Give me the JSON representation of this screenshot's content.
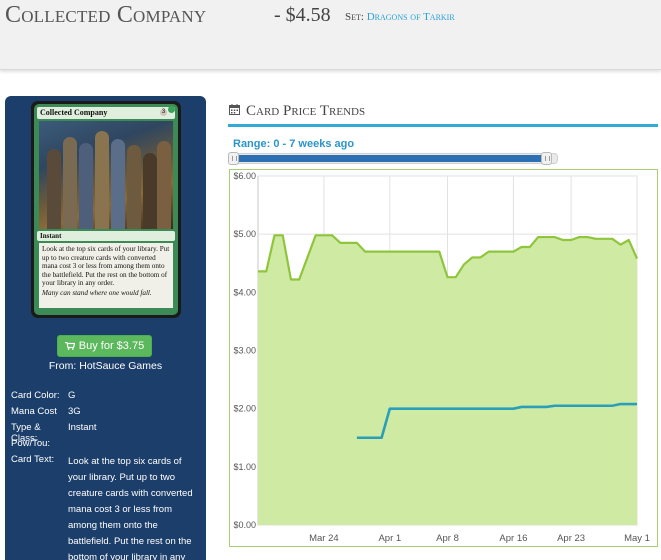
{
  "header": {
    "title": "Collected Company",
    "price": "- $4.58",
    "set_label": "Set:",
    "set_name": "Dragons of Tarkir"
  },
  "card_image": {
    "name": "Collected Company",
    "cost": "3",
    "type_line": "Instant",
    "rules_text": "Look at the top six cards of your library. Put up to two creature cards with converted mana cost 3 or less from among them onto the battlefield. Put the rest on the bottom of your library in any order.",
    "flavor_text": "Many can stand where one would fall."
  },
  "buy": {
    "label": "Buy for $3.75",
    "seller_prefix": "From: ",
    "seller": "HotSauce Games"
  },
  "details": [
    {
      "label": "Card Color:",
      "value": "G"
    },
    {
      "label": "Mana Cost",
      "value": "3G"
    },
    {
      "label": "Type & Class:",
      "value": "Instant"
    },
    {
      "label": "Pow/Tou:",
      "value": ""
    },
    {
      "label": "Card Text:",
      "value": "Look at the top six cards of your library. Put up to two creature cards with converted mana cost 3 or less from among them onto the battlefield. Put the rest on the bottom of your library in any order."
    }
  ],
  "trends": {
    "title": "Card Price Trends",
    "range_label": "Range: 0 - 7 weeks ago"
  },
  "colors": {
    "header_bg": "#f1f1f1",
    "panel_bg": "#1c3e6a",
    "accent_blue": "#2a96c8",
    "buy_green": "#5cb85c",
    "series_fill": "#cfeaa2",
    "series_line_green": "#8fc53c",
    "series_line_blue": "#2aa0b8"
  },
  "icons": {
    "buy": "cart-icon",
    "trends": "calendar-icon"
  },
  "chart_data": {
    "type": "area",
    "x_tick_labels": [
      "Mar 24",
      "Apr 1",
      "Apr 8",
      "Apr 16",
      "Apr 23",
      "May 1"
    ],
    "y_tick_labels": [
      "$0.00",
      "$1.00",
      "$2.00",
      "$3.00",
      "$4.00",
      "$5.00",
      "$6.00"
    ],
    "ylim": [
      0,
      6
    ],
    "x_range": [
      "Mar 16",
      "May 1"
    ],
    "grid": true,
    "series": [
      {
        "type": "area",
        "x": [
          "Mar 16",
          "Mar 17",
          "Mar 18",
          "Mar 19",
          "Mar 20",
          "Mar 21",
          "Mar 22",
          "Mar 23",
          "Mar 25",
          "Mar 26",
          "Mar 27",
          "Mar 28",
          "Mar 29",
          "Mar 30",
          "Mar 31",
          "Apr 1",
          "Apr 3",
          "Apr 5",
          "Apr 7",
          "Apr 8",
          "Apr 9",
          "Apr 10",
          "Apr 11",
          "Apr 12",
          "Apr 13",
          "Apr 14",
          "Apr 15",
          "Apr 16",
          "Apr 17",
          "Apr 18",
          "Apr 19",
          "Apr 20",
          "Apr 21",
          "Apr 22",
          "Apr 23",
          "Apr 24",
          "Apr 25",
          "Apr 26",
          "Apr 27",
          "Apr 28",
          "Apr 29",
          "Apr 30",
          "May 1"
        ],
        "y": [
          4.36,
          4.36,
          4.98,
          4.98,
          4.22,
          4.22,
          4.6,
          4.98,
          4.98,
          4.85,
          4.85,
          4.85,
          4.7,
          4.7,
          4.7,
          4.7,
          4.7,
          4.7,
          4.7,
          4.26,
          4.26,
          4.48,
          4.6,
          4.6,
          4.7,
          4.7,
          4.7,
          4.7,
          4.78,
          4.78,
          4.95,
          4.95,
          4.95,
          4.9,
          4.9,
          4.95,
          4.95,
          4.92,
          4.92,
          4.92,
          4.82,
          4.9,
          4.58
        ]
      },
      {
        "type": "line",
        "x": [
          "Mar 28",
          "Mar 29",
          "Mar 30",
          "Mar 31",
          "Apr 1",
          "Apr 2",
          "Apr 4",
          "Apr 6",
          "Apr 8",
          "Apr 10",
          "Apr 12",
          "Apr 14",
          "Apr 16",
          "Apr 17",
          "Apr 18",
          "Apr 19",
          "Apr 20",
          "Apr 21",
          "Apr 22",
          "Apr 23",
          "Apr 24",
          "Apr 25",
          "Apr 26",
          "Apr 27",
          "Apr 28",
          "Apr 29",
          "Apr 30",
          "May 1"
        ],
        "y": [
          1.5,
          1.5,
          1.5,
          1.5,
          2.0,
          2.0,
          2.0,
          2.0,
          2.0,
          2.0,
          2.0,
          2.0,
          2.0,
          2.03,
          2.03,
          2.03,
          2.03,
          2.05,
          2.05,
          2.05,
          2.05,
          2.05,
          2.05,
          2.05,
          2.05,
          2.08,
          2.08,
          2.08
        ]
      }
    ]
  }
}
